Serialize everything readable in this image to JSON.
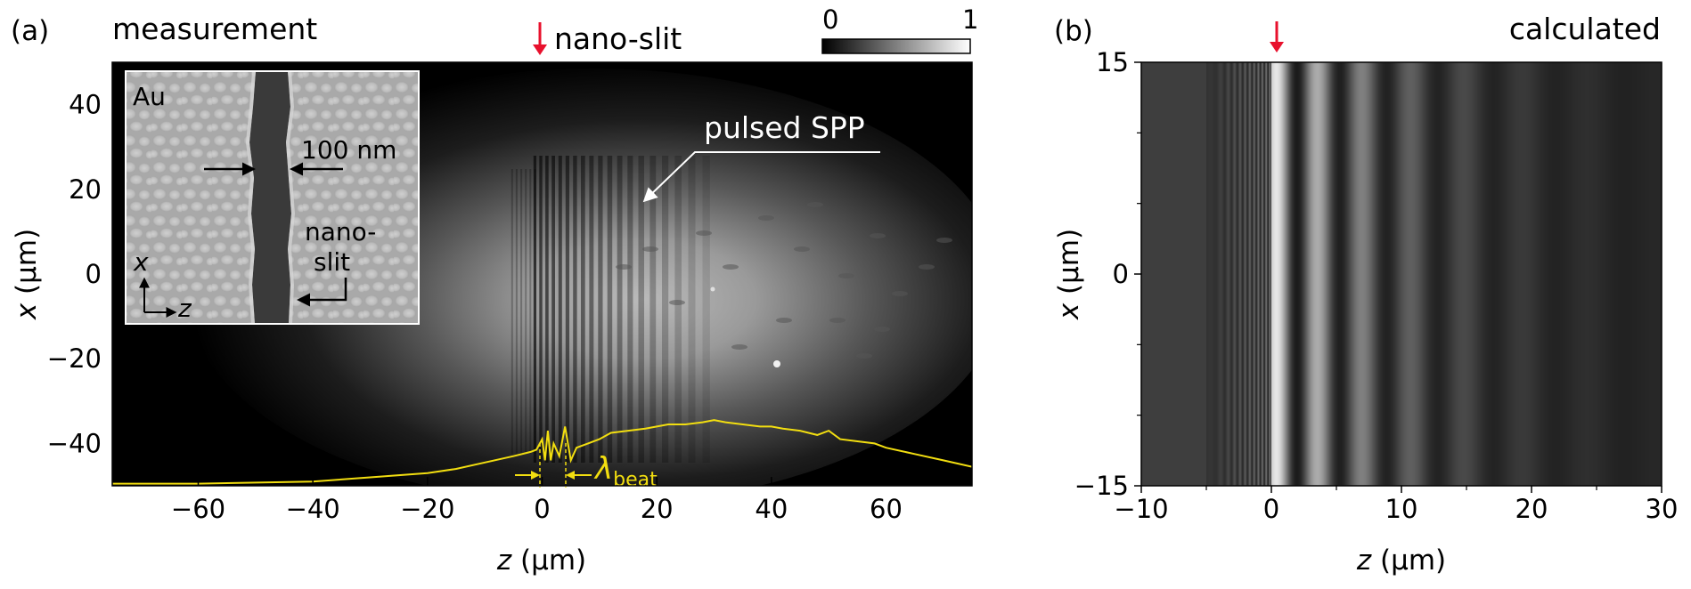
{
  "panel_a": {
    "label": "(a)",
    "title": "measurement",
    "marker": "nano-slit",
    "colorbar_min": "0",
    "colorbar_max": "1",
    "inset": {
      "material": "Au",
      "width": "100 nm",
      "slit_label_1": "nano-",
      "slit_label_2": "slit",
      "axis_x": "x",
      "axis_z": "z"
    },
    "annotation": "pulsed SPP",
    "beat_symbol": "λ",
    "beat_subscript": "beat",
    "xlabel_var": "z",
    "xlabel_unit": " (µm)",
    "ylabel_var": "x",
    "ylabel_unit": " (µm)"
  },
  "panel_b": {
    "label": "(b)",
    "title": "calculated",
    "xlabel_var": "z",
    "xlabel_unit": " (µm)",
    "ylabel_var": "x",
    "ylabel_unit": " (µm)"
  },
  "colors": {
    "marker_arrow": "#e8112d",
    "profile": "#f2de10",
    "background": "#000000"
  },
  "chart_data": [
    {
      "type": "heatmap",
      "x_ticks": [
        -60,
        -40,
        -20,
        0,
        20,
        40,
        60
      ],
      "y_ticks": [
        40,
        20,
        0,
        -20,
        -40
      ],
      "xlim": [
        -75,
        75
      ],
      "ylim": [
        -50,
        50
      ],
      "colorbar_range": [
        0,
        1
      ],
      "profile": {
        "type": "line",
        "x": [
          -75,
          -60,
          -40,
          -30,
          -20,
          -15,
          -10,
          -5,
          -2,
          -1,
          0,
          0.5,
          1,
          1.5,
          2,
          3,
          4,
          5,
          6,
          8,
          10,
          12,
          15,
          18,
          20,
          22,
          25,
          28,
          30,
          32,
          35,
          38,
          40,
          42,
          45,
          48,
          50,
          52,
          55,
          58,
          60,
          65,
          70,
          75
        ],
        "y": [
          -49.5,
          -49.5,
          -49,
          -48,
          -47,
          -46,
          -44.5,
          -43,
          -42,
          -41.5,
          -39,
          -44,
          -37,
          -44,
          -40,
          -43,
          -36,
          -44,
          -41,
          -40,
          -39,
          -37.5,
          -37,
          -36.5,
          -36,
          -35.5,
          -35.5,
          -35,
          -34.5,
          -35,
          -35.5,
          -36,
          -36,
          -36.5,
          -37,
          -38,
          -37,
          -39,
          -39.5,
          -40,
          -41,
          -42.5,
          -44,
          -45.5
        ]
      }
    },
    {
      "type": "heatmap",
      "x_ticks": [
        -10,
        0,
        10,
        20,
        30
      ],
      "y_ticks": [
        15,
        0,
        -15
      ],
      "xlim": [
        -10,
        30
      ],
      "ylim": [
        -15,
        15
      ]
    }
  ]
}
